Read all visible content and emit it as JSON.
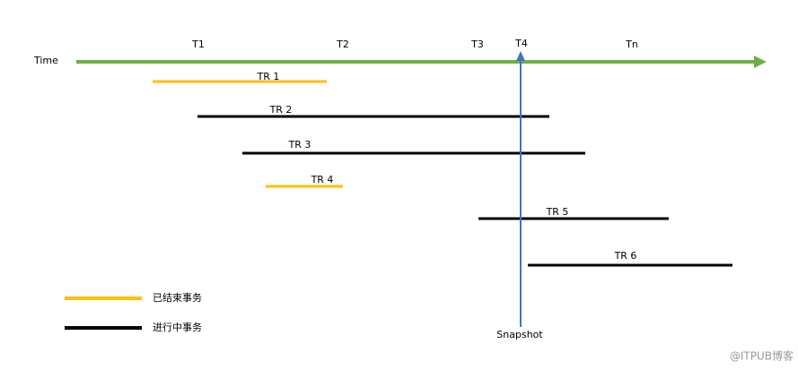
{
  "axis": {
    "label": "Time",
    "ticks": [
      "T1",
      "T2",
      "T3",
      "T4",
      "Tn"
    ]
  },
  "transactions": [
    {
      "label": "TR 1"
    },
    {
      "label": "TR 2"
    },
    {
      "label": "TR 3"
    },
    {
      "label": "TR 4"
    },
    {
      "label": "TR 5"
    },
    {
      "label": "TR 6"
    }
  ],
  "snapshot": {
    "label": "Snapshot"
  },
  "legend": [
    {
      "label": "已结束事务"
    },
    {
      "label": "进行中事务"
    }
  ],
  "watermark": "@ITPUB博客"
}
